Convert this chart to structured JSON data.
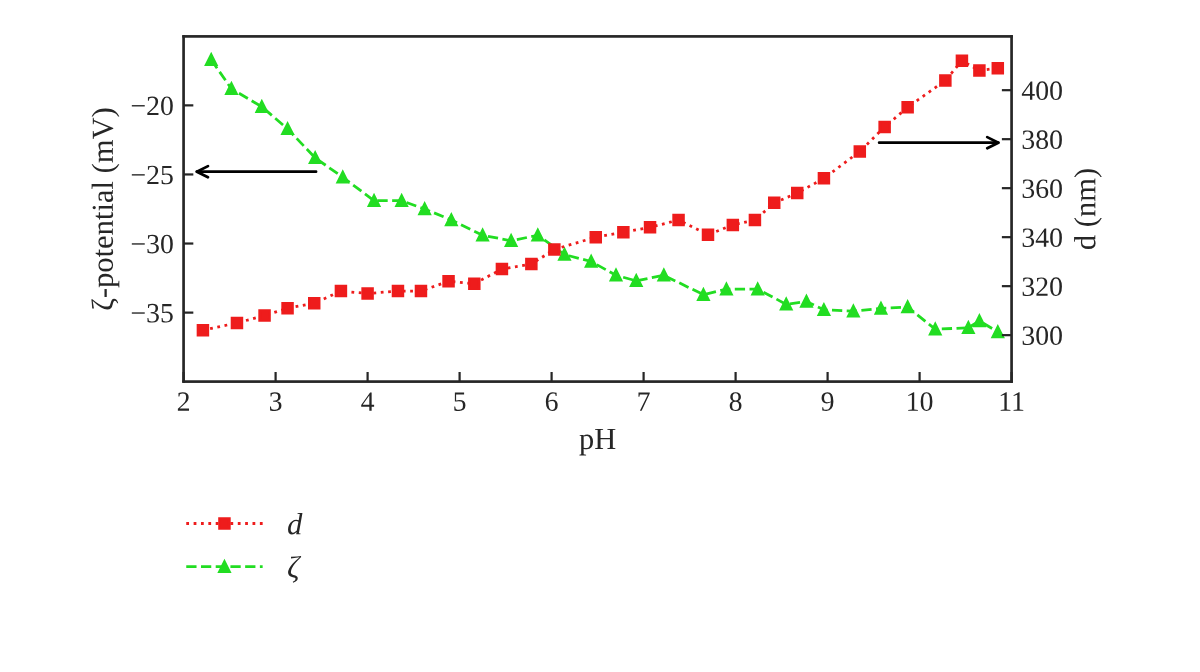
{
  "chart_data": {
    "type": "line",
    "xlabel": "pH",
    "ylabel": "ζ-potential (mV)",
    "y2label": "d (nm)",
    "xlim": [
      2,
      11
    ],
    "xticks": [
      2,
      3,
      4,
      5,
      6,
      7,
      8,
      9,
      10,
      11
    ],
    "ylim": [
      -40,
      -15
    ],
    "yticks": [
      -35,
      -30,
      -25,
      -20
    ],
    "y2lim": [
      281,
      422
    ],
    "y2ticks": [
      300,
      320,
      340,
      360,
      380,
      400
    ],
    "grid": false,
    "legend": "bottom left",
    "series": [
      {
        "name": "d",
        "color": "#ee1c1c",
        "axis": "y2",
        "marker": "square",
        "line_style": "dotted",
        "x": [
          2.21,
          2.58,
          2.88,
          3.13,
          3.42,
          3.71,
          4.0,
          4.33,
          4.58,
          4.88,
          5.16,
          5.46,
          5.78,
          6.03,
          6.48,
          6.78,
          7.07,
          7.38,
          7.7,
          7.97,
          8.21,
          8.42,
          8.67,
          8.96,
          9.35,
          9.62,
          9.87,
          10.28,
          10.46,
          10.65,
          10.85
        ],
        "values": [
          302,
          305,
          308,
          311,
          313,
          318,
          317,
          318,
          318,
          322,
          321,
          327,
          329,
          335,
          340,
          342,
          344,
          347,
          341,
          345,
          347,
          354,
          358,
          364,
          375,
          385,
          393,
          404,
          412,
          408,
          409
        ]
      },
      {
        "name": "ζ",
        "color": "#22dd22",
        "axis": "y",
        "marker": "triangle",
        "line_style": "dashed",
        "x": [
          2.3,
          2.52,
          2.85,
          3.13,
          3.43,
          3.73,
          4.07,
          4.37,
          4.62,
          4.91,
          5.25,
          5.56,
          5.85,
          6.14,
          6.43,
          6.7,
          6.92,
          7.22,
          7.65,
          7.9,
          8.24,
          8.55,
          8.77,
          8.96,
          9.28,
          9.58,
          9.87,
          10.17,
          10.53,
          10.65,
          10.85
        ],
        "values": [
          -16.7,
          -18.8,
          -20.1,
          -21.7,
          -23.8,
          -25.2,
          -26.9,
          -26.9,
          -27.5,
          -28.3,
          -29.4,
          -29.8,
          -29.4,
          -30.8,
          -31.3,
          -32.3,
          -32.7,
          -32.3,
          -33.7,
          -33.3,
          -33.3,
          -34.4,
          -34.2,
          -34.8,
          -34.9,
          -34.7,
          -34.6,
          -36.2,
          -36.1,
          -35.6,
          -36.4
        ]
      }
    ]
  }
}
